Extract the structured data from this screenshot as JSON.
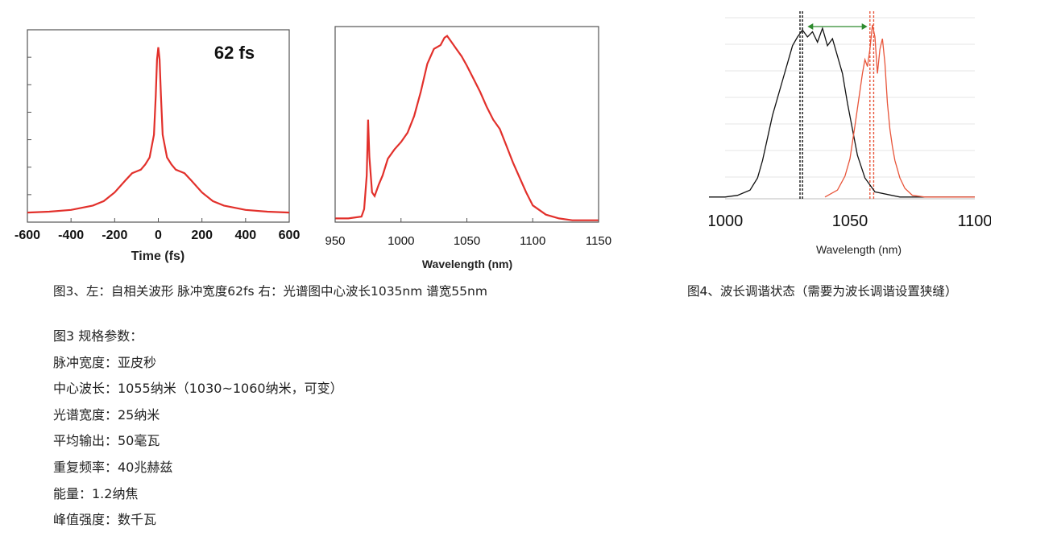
{
  "chart_data": [
    {
      "id": "autocorrelation",
      "type": "line",
      "title": "62 fs",
      "xlabel": "Time (fs)",
      "ylabel": "",
      "xlim": [
        -600,
        600
      ],
      "ylim": [
        0,
        1.1
      ],
      "x_ticks": [
        -600,
        -400,
        -200,
        0,
        200,
        400,
        600
      ],
      "x_tick_labels": [
        "-600",
        "-400",
        "-200",
        "0",
        "200",
        "400",
        "600"
      ],
      "grid": false,
      "series": [
        {
          "color": "#e2302b",
          "x": [
            -600,
            -500,
            -400,
            -300,
            -250,
            -200,
            -150,
            -120,
            -100,
            -80,
            -60,
            -40,
            -20,
            -12,
            -6,
            0,
            6,
            12,
            20,
            40,
            60,
            80,
            100,
            120,
            150,
            200,
            250,
            300,
            400,
            500,
            600
          ],
          "y": [
            0.055,
            0.06,
            0.07,
            0.095,
            0.12,
            0.17,
            0.24,
            0.28,
            0.29,
            0.3,
            0.33,
            0.37,
            0.5,
            0.72,
            0.93,
            1.0,
            0.93,
            0.72,
            0.5,
            0.37,
            0.33,
            0.3,
            0.29,
            0.28,
            0.24,
            0.17,
            0.12,
            0.095,
            0.07,
            0.06,
            0.055
          ]
        }
      ]
    },
    {
      "id": "spectrum",
      "type": "line",
      "title": "",
      "xlabel": "Wavelength (nm)",
      "ylabel": "",
      "xlim": [
        950,
        1150
      ],
      "ylim": [
        0,
        1.05
      ],
      "x_ticks": [
        950,
        1000,
        1050,
        1100,
        1150
      ],
      "x_tick_labels": [
        "950",
        "1000",
        "1050",
        "1100",
        "1150"
      ],
      "grid": false,
      "series": [
        {
          "color": "#e2302b",
          "x": [
            950,
            960,
            970,
            972,
            974,
            975,
            976,
            978,
            980,
            983,
            986,
            990,
            995,
            1000,
            1005,
            1010,
            1015,
            1020,
            1025,
            1030,
            1033,
            1035,
            1038,
            1042,
            1046,
            1050,
            1055,
            1060,
            1065,
            1070,
            1075,
            1080,
            1085,
            1090,
            1095,
            1100,
            1110,
            1120,
            1130,
            1150
          ],
          "y": [
            0.02,
            0.02,
            0.03,
            0.07,
            0.25,
            0.55,
            0.35,
            0.16,
            0.14,
            0.2,
            0.25,
            0.34,
            0.39,
            0.43,
            0.48,
            0.57,
            0.7,
            0.85,
            0.93,
            0.95,
            0.99,
            1.0,
            0.97,
            0.93,
            0.89,
            0.84,
            0.77,
            0.7,
            0.62,
            0.55,
            0.5,
            0.41,
            0.32,
            0.24,
            0.16,
            0.09,
            0.04,
            0.02,
            0.01,
            0.01
          ]
        }
      ]
    },
    {
      "id": "tuning",
      "type": "line",
      "title": "",
      "xlabel": "Wavelength (nm)",
      "ylabel": "",
      "xlim": [
        1000,
        1100
      ],
      "ylim": [
        0,
        1.05
      ],
      "x_ticks": [
        1000,
        1050,
        1100
      ],
      "x_tick_labels": [
        "1000",
        "1050",
        "1100"
      ],
      "grid": true,
      "arrow_range": [
        1033,
        1057
      ],
      "series": [
        {
          "color": "#111111",
          "style": "solid",
          "x": [
            990,
            1000,
            1005,
            1010,
            1013,
            1015,
            1017,
            1019,
            1021,
            1023,
            1025,
            1027,
            1029,
            1031,
            1033,
            1035,
            1037,
            1039,
            1041,
            1043,
            1045,
            1047,
            1049,
            1051,
            1053,
            1056,
            1060,
            1070,
            1080,
            1100
          ],
          "y": [
            0.01,
            0.01,
            0.02,
            0.05,
            0.12,
            0.22,
            0.35,
            0.48,
            0.58,
            0.68,
            0.78,
            0.88,
            0.93,
            0.97,
            0.93,
            0.96,
            0.9,
            0.98,
            0.88,
            0.92,
            0.82,
            0.72,
            0.55,
            0.4,
            0.25,
            0.12,
            0.04,
            0.01,
            0.01,
            0.01
          ]
        },
        {
          "color": "#e8553a",
          "style": "solid",
          "x": [
            1040,
            1045,
            1048,
            1050,
            1052,
            1054,
            1055,
            1056,
            1057,
            1058,
            1059,
            1060,
            1061,
            1062,
            1063,
            1064,
            1065,
            1066,
            1067,
            1068,
            1070,
            1072,
            1075,
            1080,
            1100
          ],
          "y": [
            0.01,
            0.05,
            0.13,
            0.23,
            0.42,
            0.62,
            0.72,
            0.8,
            0.76,
            0.86,
            1.0,
            0.93,
            0.72,
            0.86,
            0.92,
            0.78,
            0.55,
            0.4,
            0.3,
            0.22,
            0.12,
            0.06,
            0.02,
            0.01,
            0.01
          ]
        }
      ],
      "dashed_lines": [
        {
          "x": 1030,
          "color": "#111111"
        },
        {
          "x": 1031,
          "color": "#111111"
        },
        {
          "x": 1058,
          "color": "#e8553a"
        },
        {
          "x": 1059.5,
          "color": "#e8553a"
        }
      ]
    }
  ],
  "captions": {
    "fig3": "图3、左：自相关波形 脉冲宽度62fs 右：光谱图中心波长1035nm 谱宽55nm",
    "fig4": "图4、波长调谐状态（需要为波长调谐设置狭缝）"
  },
  "specs": {
    "title": "图3 规格参数：",
    "items": [
      "脉冲宽度：亚皮秒",
      "中心波长：1055纳米（1030~1060纳米，可变）",
      "光谱宽度：25纳米",
      "平均输出：50毫瓦",
      "重复频率：40兆赫兹",
      "能量：1.2纳焦",
      "峰值强度：数千瓦"
    ]
  }
}
